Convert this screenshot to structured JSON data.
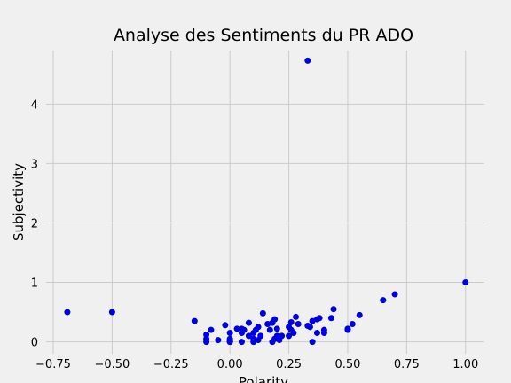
{
  "chart_data": {
    "type": "scatter",
    "title": "Analyse des Sentiments du PR ADO",
    "xlabel": "Polarity",
    "ylabel": "Subjectivity",
    "xlim": [
      -0.78,
      1.08
    ],
    "ylim": [
      -0.2,
      4.9
    ],
    "xticks": [
      -0.75,
      -0.5,
      -0.25,
      0.0,
      0.25,
      0.5,
      0.75,
      1.0
    ],
    "xtick_labels": [
      "−0.75",
      "−0.50",
      "−0.25",
      "0.00",
      "0.25",
      "0.50",
      "0.75",
      "1.00"
    ],
    "yticks": [
      0,
      1,
      2,
      3,
      4
    ],
    "ytick_labels": [
      "0",
      "1",
      "2",
      "3",
      "4"
    ],
    "grid": true,
    "point_color": "#0000dd",
    "background": "#f0f0f0",
    "points": [
      [
        -0.69,
        0.5
      ],
      [
        -0.5,
        0.5
      ],
      [
        -0.15,
        0.35
      ],
      [
        -0.1,
        0.12
      ],
      [
        -0.1,
        0.05
      ],
      [
        -0.1,
        0.0
      ],
      [
        -0.08,
        0.2
      ],
      [
        -0.05,
        0.03
      ],
      [
        -0.02,
        0.28
      ],
      [
        0.0,
        0.0
      ],
      [
        0.0,
        0.0
      ],
      [
        0.0,
        0.02
      ],
      [
        0.0,
        0.05
      ],
      [
        0.0,
        0.15
      ],
      [
        0.03,
        0.22
      ],
      [
        0.05,
        0.0
      ],
      [
        0.05,
        0.15
      ],
      [
        0.05,
        0.22
      ],
      [
        0.06,
        0.2
      ],
      [
        0.08,
        0.1
      ],
      [
        0.08,
        0.32
      ],
      [
        0.1,
        0.0
      ],
      [
        0.1,
        0.05
      ],
      [
        0.1,
        0.15
      ],
      [
        0.11,
        0.2
      ],
      [
        0.12,
        0.25
      ],
      [
        0.12,
        0.03
      ],
      [
        0.13,
        0.1
      ],
      [
        0.14,
        0.48
      ],
      [
        0.16,
        0.3
      ],
      [
        0.17,
        0.2
      ],
      [
        0.18,
        0.0
      ],
      [
        0.18,
        0.32
      ],
      [
        0.19,
        0.05
      ],
      [
        0.19,
        0.38
      ],
      [
        0.2,
        0.1
      ],
      [
        0.2,
        0.22
      ],
      [
        0.21,
        0.03
      ],
      [
        0.22,
        0.1
      ],
      [
        0.25,
        0.1
      ],
      [
        0.25,
        0.25
      ],
      [
        0.26,
        0.2
      ],
      [
        0.26,
        0.33
      ],
      [
        0.27,
        0.15
      ],
      [
        0.28,
        0.42
      ],
      [
        0.29,
        0.3
      ],
      [
        0.33,
        0.27
      ],
      [
        0.33,
        4.73
      ],
      [
        0.34,
        0.25
      ],
      [
        0.35,
        0.0
      ],
      [
        0.35,
        0.35
      ],
      [
        0.37,
        0.15
      ],
      [
        0.37,
        0.38
      ],
      [
        0.38,
        0.4
      ],
      [
        0.4,
        0.15
      ],
      [
        0.4,
        0.2
      ],
      [
        0.43,
        0.4
      ],
      [
        0.44,
        0.55
      ],
      [
        0.5,
        0.2
      ],
      [
        0.5,
        0.22
      ],
      [
        0.52,
        0.3
      ],
      [
        0.55,
        0.45
      ],
      [
        0.65,
        0.7
      ],
      [
        0.7,
        0.8
      ],
      [
        1.0,
        1.0
      ]
    ]
  }
}
